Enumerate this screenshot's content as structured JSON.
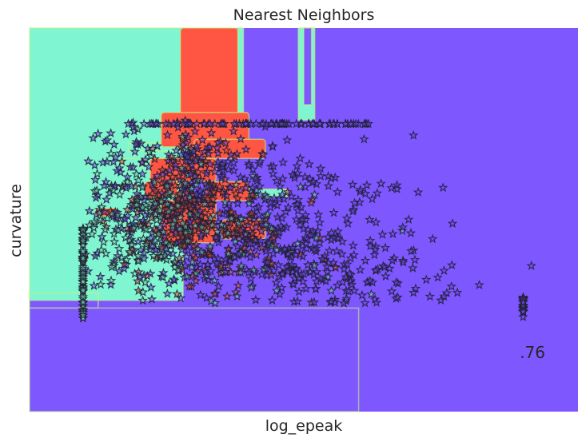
{
  "chart_data": {
    "type": "scatter",
    "title": "Nearest Neighbors",
    "xlabel": "log_epeak",
    "ylabel": "curvature",
    "score_label": ".76",
    "xlim": [
      0,
      1
    ],
    "ylim": [
      0,
      1
    ],
    "grid": false,
    "legend": "none",
    "show_ticks": false,
    "colors": {
      "background": "#ffffff",
      "class_0_region": "#7f57ff",
      "class_1_region": "#80f5d2",
      "class_2_region": "#ff5644",
      "edge": "#c7f574",
      "marker_edge": "#1f1f2e",
      "marker_fill_0": "#6a45f0",
      "marker_fill_1": "#6dd8b8",
      "marker_fill_2": "#e04a3a"
    },
    "decision_regions": [
      {
        "class": 1,
        "x": [
          0.0,
          0.28
        ],
        "y": [
          0.29,
          1.0
        ]
      },
      {
        "class": 1,
        "x": [
          0.0,
          0.125
        ],
        "y": [
          0.28,
          0.31
        ]
      },
      {
        "class": 2,
        "x": [
          0.275,
          0.38
        ],
        "y": [
          0.77,
          1.0
        ]
      },
      {
        "class": 1,
        "x": [
          0.38,
          0.39
        ],
        "y": [
          0.77,
          1.0
        ]
      },
      {
        "class": 1,
        "x": [
          0.49,
          0.52
        ],
        "y": [
          0.76,
          1.0
        ]
      },
      {
        "class": 0,
        "x": [
          0.5,
          0.514
        ],
        "y": [
          0.8,
          1.0
        ]
      },
      {
        "class": 0,
        "x": [
          0.0,
          0.125
        ],
        "y": [
          0.27,
          0.29
        ]
      },
      {
        "class": 0,
        "x": [
          0.0,
          0.6
        ],
        "y": [
          0.0,
          0.27
        ]
      },
      {
        "class": 1,
        "x": [
          0.18,
          0.4
        ],
        "y": [
          0.68,
          0.7
        ]
      },
      {
        "class": 2,
        "x": [
          0.24,
          0.4
        ],
        "y": [
          0.69,
          0.78
        ]
      },
      {
        "class": 2,
        "x": [
          0.3,
          0.43
        ],
        "y": [
          0.66,
          0.71
        ]
      },
      {
        "class": 2,
        "x": [
          0.22,
          0.34
        ],
        "y": [
          0.6,
          0.66
        ]
      },
      {
        "class": 2,
        "x": [
          0.21,
          0.27
        ],
        "y": [
          0.56,
          0.6
        ]
      },
      {
        "class": 2,
        "x": [
          0.32,
          0.4
        ],
        "y": [
          0.55,
          0.6
        ]
      },
      {
        "class": 2,
        "x": [
          0.12,
          0.16
        ],
        "y": [
          0.51,
          0.53
        ]
      },
      {
        "class": 2,
        "x": [
          0.24,
          0.34
        ],
        "y": [
          0.44,
          0.55
        ]
      },
      {
        "class": 2,
        "x": [
          0.35,
          0.43
        ],
        "y": [
          0.45,
          0.5
        ]
      },
      {
        "class": 1,
        "x": [
          0.4,
          0.47
        ],
        "y": [
          0.56,
          0.58
        ]
      },
      {
        "class": 1,
        "x": [
          0.17,
          0.21
        ],
        "y": [
          0.64,
          0.66
        ]
      }
    ],
    "clusters": [
      {
        "cx": 0.33,
        "cy": 0.52,
        "sx": 0.12,
        "sy": 0.11,
        "n": 520,
        "fill": 0
      },
      {
        "cx": 0.3,
        "cy": 0.5,
        "sx": 0.07,
        "sy": 0.09,
        "n": 240,
        "fill": 2
      },
      {
        "cx": 0.27,
        "cy": 0.48,
        "sx": 0.1,
        "sy": 0.1,
        "n": 200,
        "fill": 1
      },
      {
        "cx": 0.52,
        "cy": 0.39,
        "sx": 0.1,
        "sy": 0.06,
        "n": 150,
        "fill": 0
      },
      {
        "cx": 0.33,
        "cy": 0.65,
        "sx": 0.13,
        "sy": 0.05,
        "n": 90,
        "fill": 0
      }
    ],
    "stripes": [
      {
        "x": 0.0975,
        "y": [
          0.75,
          0.75
        ],
        "n": 0
      },
      {
        "x": 0.0975,
        "y": [
          0.24,
          0.48
        ],
        "n": 70,
        "fill": 1
      },
      {
        "x": 0.9,
        "y": [
          0.24,
          0.3
        ],
        "n": 22,
        "fill": 0
      },
      {
        "x_range": [
          0.175,
          0.62
        ],
        "y": 0.75,
        "n": 85,
        "fill": 0
      }
    ],
    "isolated_points": [
      {
        "x": 0.915,
        "y": 0.38,
        "fill": 0
      },
      {
        "x": 0.82,
        "y": 0.33,
        "fill": 0
      },
      {
        "x": 0.78,
        "y": 0.31,
        "fill": 0
      },
      {
        "x": 0.75,
        "y": 0.29,
        "fill": 0
      },
      {
        "x": 0.73,
        "y": 0.3,
        "fill": 0
      },
      {
        "x": 0.7,
        "y": 0.31,
        "fill": 0
      },
      {
        "x": 0.735,
        "y": 0.45,
        "fill": 0
      },
      {
        "x": 0.67,
        "y": 0.58,
        "fill": 0
      },
      {
        "x": 0.7,
        "y": 0.72,
        "fill": 0
      },
      {
        "x": 0.61,
        "y": 0.71,
        "fill": 0
      },
      {
        "x": 0.615,
        "y": 0.59,
        "fill": 0
      },
      {
        "x": 0.62,
        "y": 0.5,
        "fill": 0
      }
    ],
    "seed": 7
  }
}
